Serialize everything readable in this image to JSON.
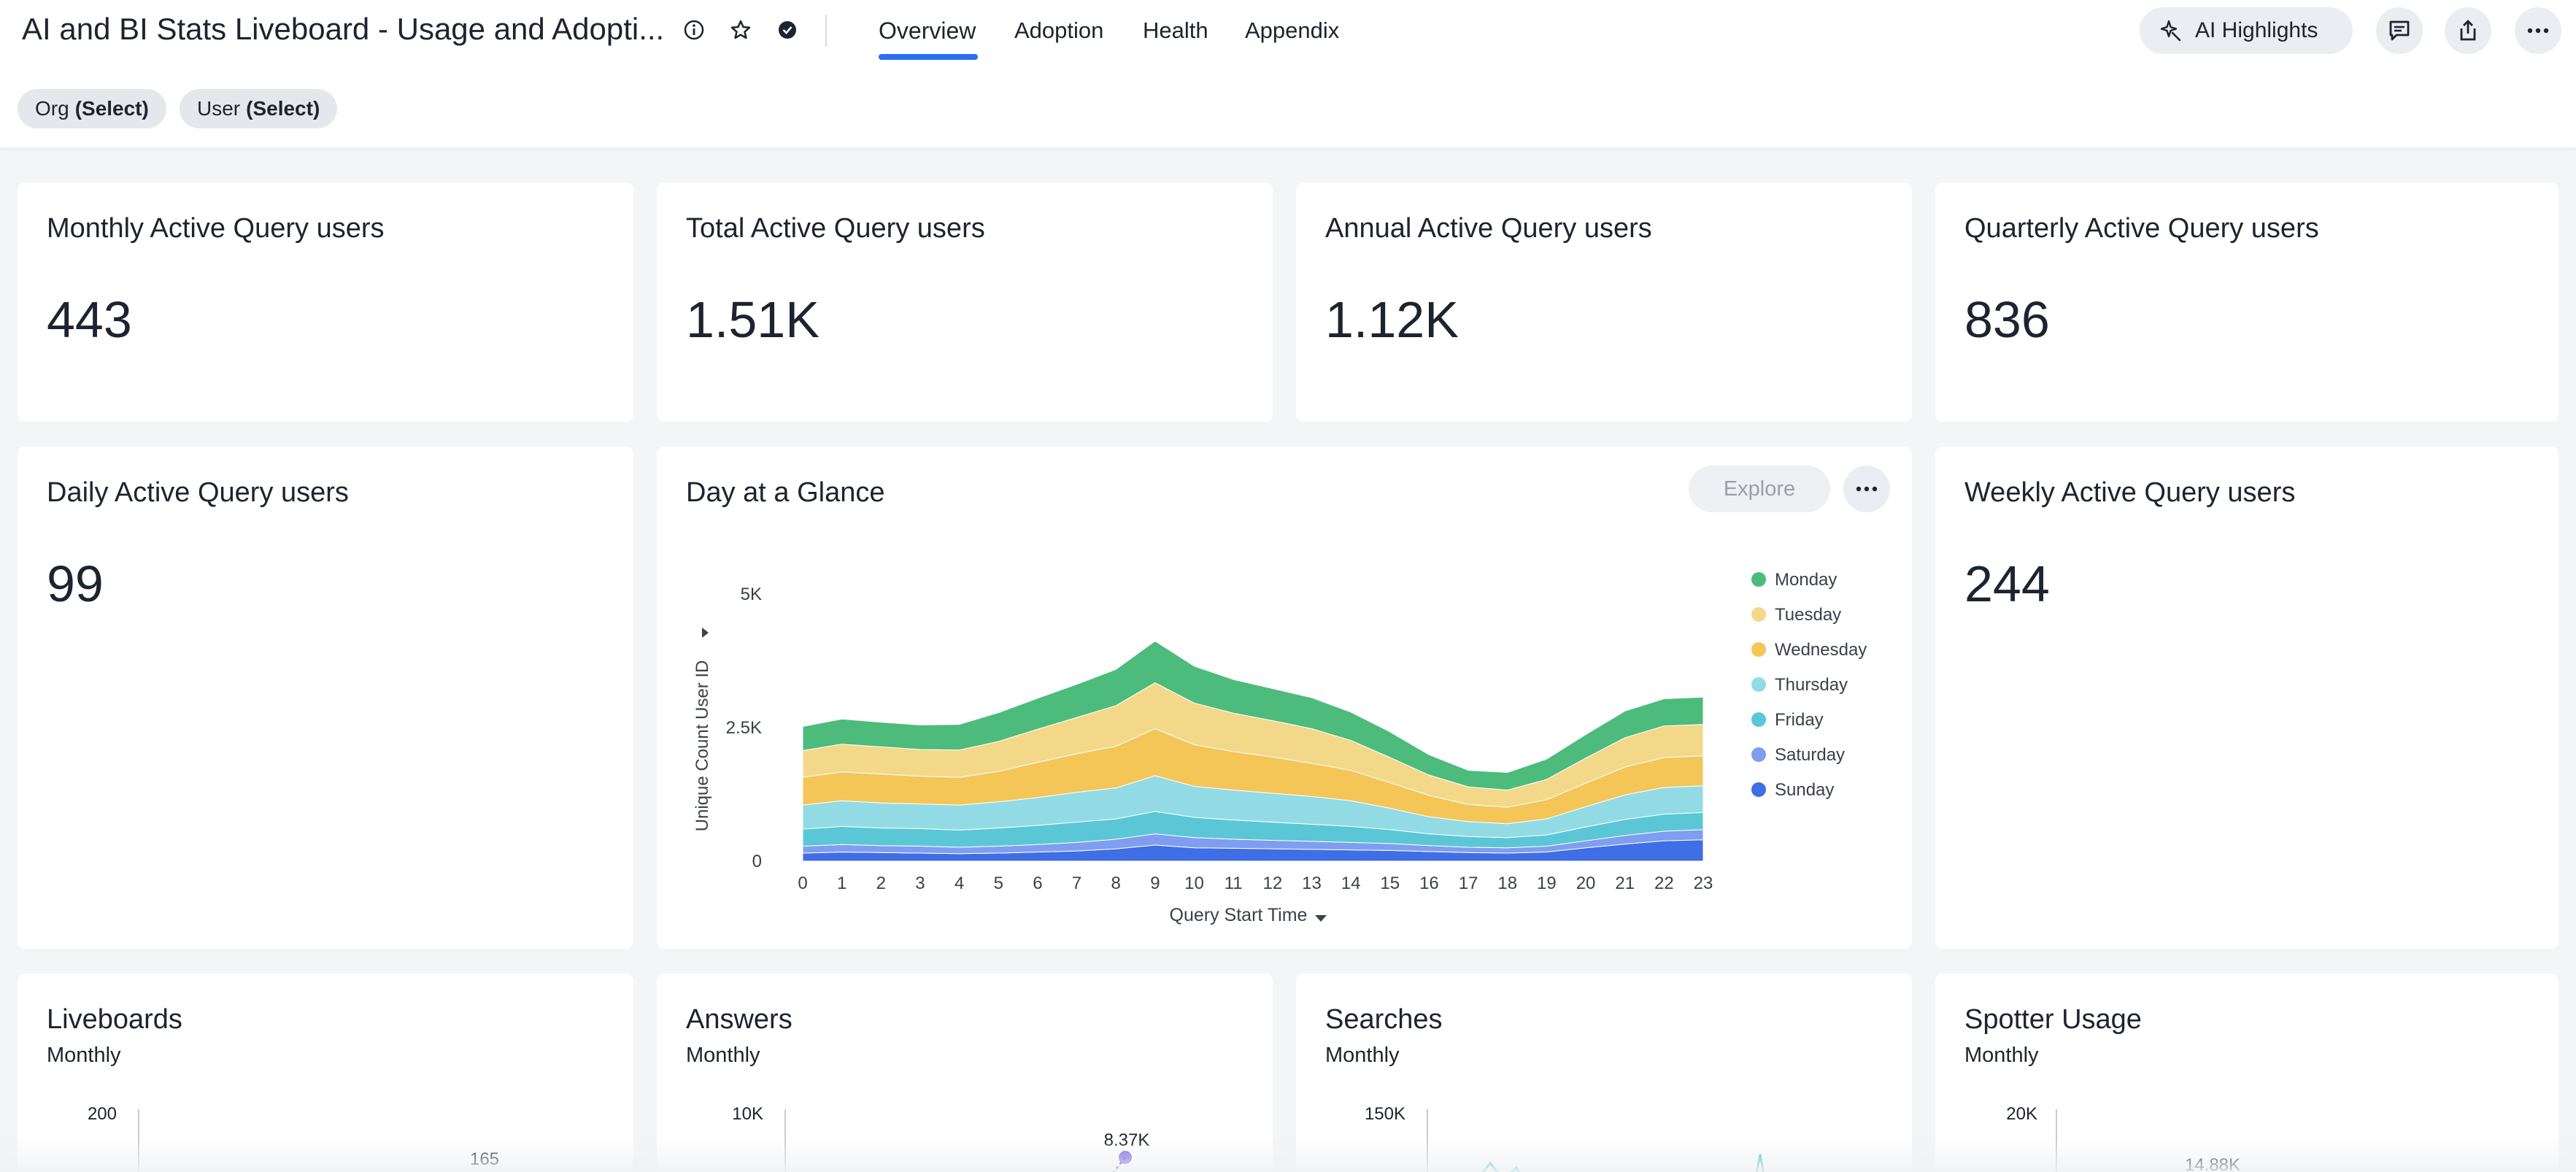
{
  "header": {
    "title": "AI and BI Stats Liveboard - Usage and Adopti...",
    "tabs": [
      {
        "label": "Overview",
        "active": true
      },
      {
        "label": "Adoption",
        "active": false
      },
      {
        "label": "Health",
        "active": false
      },
      {
        "label": "Appendix",
        "active": false
      }
    ],
    "ai_highlights_label": "AI Highlights"
  },
  "filters": [
    {
      "name": "Org",
      "value": "(Select)"
    },
    {
      "name": "User",
      "value": "(Select)"
    }
  ],
  "kpis": {
    "monthly": {
      "title": "Monthly Active Query users",
      "value": "443"
    },
    "total": {
      "title": "Total Active Query users",
      "value": "1.51K"
    },
    "annual": {
      "title": "Annual Active Query users",
      "value": "1.12K"
    },
    "quarterly": {
      "title": "Quarterly Active Query users",
      "value": "836"
    },
    "daily": {
      "title": "Daily Active Query users",
      "value": "99"
    },
    "weekly": {
      "title": "Weekly Active Query users",
      "value": "244"
    }
  },
  "day_glance": {
    "title": "Day at a Glance",
    "explore_label": "Explore"
  },
  "bottom_cards": [
    {
      "title": "Liveboards",
      "subtitle": "Monthly",
      "ytick": "200",
      "label": "165"
    },
    {
      "title": "Answers",
      "subtitle": "Monthly",
      "ytick": "10K",
      "label": "8.37K"
    },
    {
      "title": "Searches",
      "subtitle": "Monthly",
      "ytick": "150K",
      "label": ""
    },
    {
      "title": "Spotter Usage",
      "subtitle": "Monthly",
      "ytick": "20K",
      "label": "14.88K"
    }
  ],
  "colors": {
    "accent": "#2770ef",
    "monday": "#4dbb7b",
    "tuesday": "#f3d88a",
    "wednesday": "#f4c557",
    "thursday": "#93dbe4",
    "friday": "#5bc7d6",
    "saturday": "#7f9ef0",
    "sunday": "#3f6ee6"
  },
  "chart_data": {
    "type": "area",
    "stacked": true,
    "title": "Day at a Glance",
    "xlabel": "Query Start Time",
    "ylabel": "Unique Count User ID",
    "ylim": [
      0,
      5000
    ],
    "yticks": [
      "0",
      "2.5K",
      "5K"
    ],
    "legend_position": "right",
    "categories": [
      "0",
      "1",
      "2",
      "3",
      "4",
      "5",
      "6",
      "7",
      "8",
      "9",
      "10",
      "11",
      "12",
      "13",
      "14",
      "15",
      "16",
      "17",
      "18",
      "19",
      "20",
      "21",
      "22",
      "23"
    ],
    "series": [
      {
        "name": "Sunday",
        "color": "#3f6ee6",
        "values": [
          150,
          170,
          160,
          150,
          140,
          150,
          170,
          190,
          230,
          300,
          250,
          240,
          230,
          220,
          210,
          200,
          180,
          160,
          150,
          170,
          250,
          320,
          380,
          400
        ]
      },
      {
        "name": "Saturday",
        "color": "#7f9ef0",
        "values": [
          130,
          140,
          130,
          130,
          120,
          130,
          140,
          160,
          180,
          210,
          190,
          170,
          160,
          150,
          140,
          130,
          110,
          100,
          100,
          110,
          130,
          160,
          180,
          190
        ]
      },
      {
        "name": "Friday",
        "color": "#5bc7d6",
        "values": [
          320,
          340,
          330,
          330,
          320,
          340,
          360,
          380,
          380,
          420,
          380,
          360,
          340,
          320,
          300,
          260,
          220,
          200,
          190,
          210,
          260,
          300,
          320,
          320
        ]
      },
      {
        "name": "Thursday",
        "color": "#93dbe4",
        "values": [
          450,
          480,
          470,
          460,
          470,
          490,
          520,
          560,
          580,
          670,
          580,
          560,
          540,
          520,
          480,
          400,
          320,
          280,
          260,
          300,
          380,
          460,
          500,
          500
        ]
      },
      {
        "name": "Wednesday",
        "color": "#f4c557",
        "values": [
          520,
          540,
          540,
          520,
          520,
          570,
          660,
          720,
          780,
          880,
          780,
          720,
          680,
          620,
          570,
          480,
          400,
          320,
          310,
          360,
          440,
          520,
          560,
          560
        ]
      },
      {
        "name": "Tuesday",
        "color": "#f3d88a",
        "values": [
          500,
          520,
          510,
          500,
          510,
          560,
          620,
          680,
          760,
          860,
          780,
          720,
          680,
          650,
          560,
          470,
          380,
          330,
          320,
          380,
          470,
          550,
          590,
          590
        ]
      },
      {
        "name": "Monday",
        "color": "#4dbb7b",
        "values": [
          450,
          470,
          460,
          460,
          480,
          540,
          580,
          620,
          680,
          780,
          690,
          630,
          600,
          580,
          530,
          480,
          380,
          310,
          330,
          380,
          440,
          500,
          510,
          510
        ]
      }
    ]
  }
}
